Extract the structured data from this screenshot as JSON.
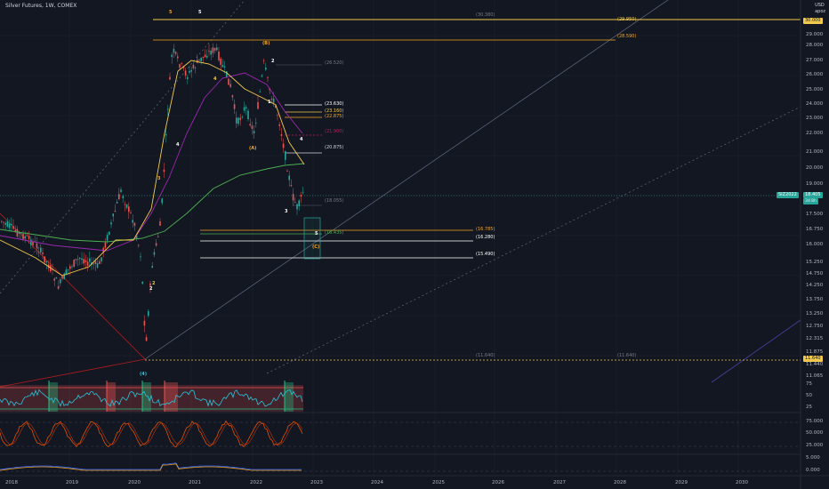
{
  "header": {
    "symbol_title": "Silver Futures, 1W, COMEX",
    "currency": "USD",
    "mode": "apoz"
  },
  "price_axis": {
    "ticks": [
      "29.000",
      "28.000",
      "27.000",
      "26.000",
      "25.000",
      "24.000",
      "23.000",
      "22.000",
      "21.000",
      "20.000",
      "19.000",
      "17.500",
      "16.750",
      "16.000",
      "15.250",
      "14.750",
      "14.250",
      "13.750",
      "13.250",
      "12.750",
      "12.315",
      "11.875",
      "11.440",
      "11.065"
    ],
    "tags": {
      "top_price": "30.000",
      "symbol": "SIZ2022",
      "last_price": "18.405",
      "countdown": "3d 8h",
      "bottom_price": "11.640"
    }
  },
  "time_axis": [
    "2018",
    "2019",
    "2020",
    "2021",
    "2022",
    "2023",
    "2024",
    "2025",
    "2026",
    "2027",
    "2028",
    "2029",
    "2030"
  ],
  "levels": [
    {
      "id": "l1",
      "label": "(30.380)",
      "color": "#787b86"
    },
    {
      "id": "l2",
      "label": "(29.950)",
      "color": "#f2c94c"
    },
    {
      "id": "l3",
      "label": "(28.590)",
      "color": "#f5a623"
    },
    {
      "id": "l4",
      "label": "(26.520)",
      "color": "#787b86"
    },
    {
      "id": "l5",
      "label": "(23.630)",
      "color": "#ffffff"
    },
    {
      "id": "l6",
      "label": "(23.160)",
      "color": "#f2c94c"
    },
    {
      "id": "l7",
      "label": "(22.875)",
      "color": "#f5a623"
    },
    {
      "id": "l8",
      "label": "(21.900)",
      "color": "#c2185b"
    },
    {
      "id": "l9",
      "label": "(20.875)",
      "color": "#d1d4dc"
    },
    {
      "id": "l10",
      "label": "(18.055)",
      "color": "#787b86"
    },
    {
      "id": "l11",
      "label": "(16.785)",
      "color": "#f5a623"
    },
    {
      "id": "l12",
      "label": "(16.435)",
      "color": "#4caf50"
    },
    {
      "id": "l13",
      "label": "(16.280)",
      "color": "#ffffff"
    },
    {
      "id": "l14",
      "label": "(15.490)",
      "color": "#ffffff"
    },
    {
      "id": "l15",
      "label": "(11.640)",
      "color": "#787b86"
    },
    {
      "id": "l16",
      "label": "(11.640)",
      "color": "#787b86"
    }
  ],
  "waves": {
    "w5a": "5",
    "w5b": "5",
    "wB": "(B)",
    "w2a": "2",
    "w4a": "4",
    "wA": "(A)",
    "w1": "1",
    "w4b": "4",
    "w3a": "3",
    "w3b": "3",
    "w4c": "4",
    "w2b": "2",
    "w2c": "2",
    "w5c": "5",
    "wC": "(C)",
    "w4bracket": "(4)"
  },
  "osc1_axis": [
    "75",
    "50",
    "25"
  ],
  "osc2_axis": [
    "75.000",
    "50.000",
    "25.000"
  ],
  "osc3_axis": [
    "5.000",
    "0.000"
  ],
  "colors": {
    "bg": "#131722",
    "up": "#26a69a",
    "down": "#ef5350",
    "accent": "#f2c94c"
  }
}
